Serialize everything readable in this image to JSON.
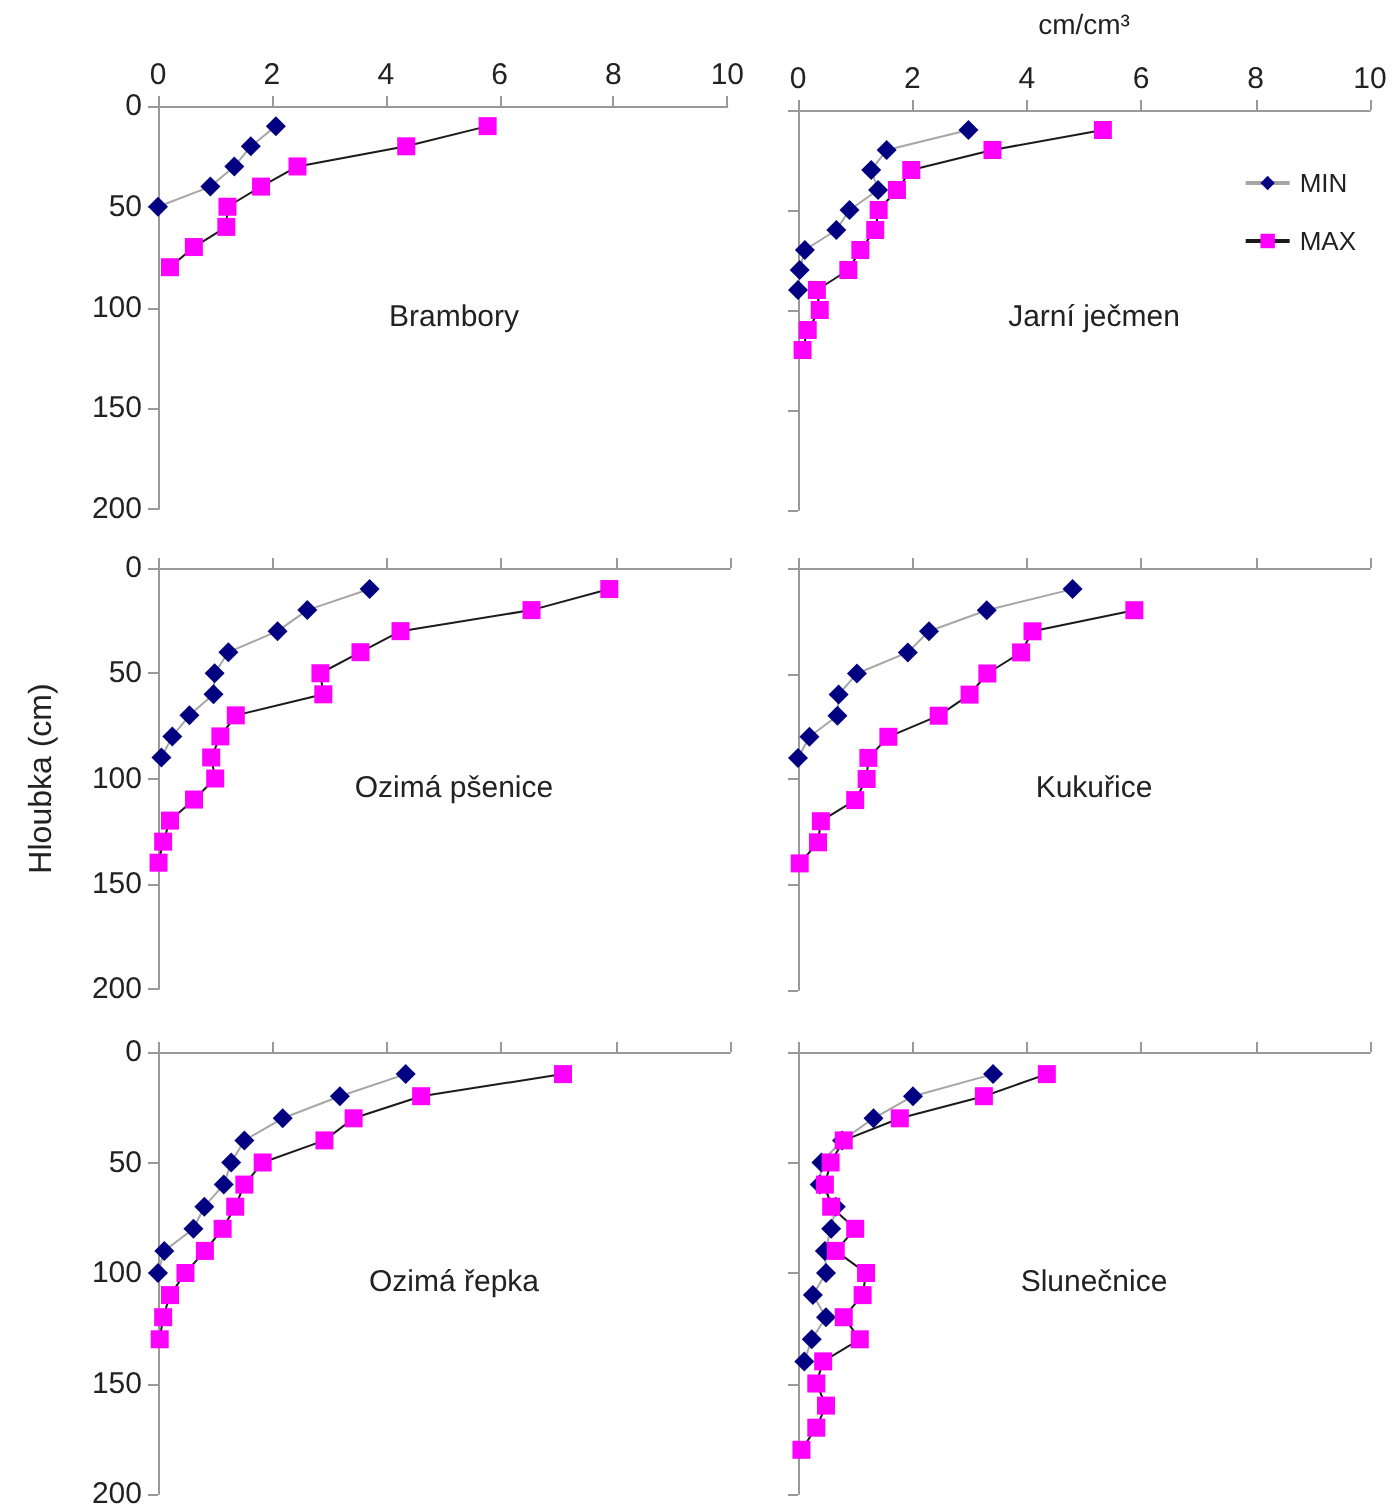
{
  "chart_data": [
    {
      "type": "line",
      "title": "Brambory",
      "xlim": [
        0,
        10
      ],
      "xticks": [
        0,
        2,
        4,
        6,
        8,
        10
      ],
      "ylim": [
        200,
        0
      ],
      "yticks": [
        0,
        50,
        100,
        150,
        200
      ],
      "grid": false,
      "legend": false,
      "series": [
        {
          "color": "#000080",
          "marker": "diamond",
          "x": [
            2.07,
            1.63,
            1.34,
            0.92,
            0
          ],
          "values": [
            10,
            20,
            30,
            40,
            50
          ]
        },
        {
          "color": "#ff00ff",
          "marker": "square",
          "x": [
            5.79,
            4.36,
            2.45,
            1.81,
            1.22,
            1.2,
            0.63,
            0.21
          ],
          "values": [
            10,
            20,
            30,
            40,
            50,
            60,
            70,
            80
          ]
        }
      ]
    },
    {
      "type": "line",
      "title": "Jarní ječmen",
      "xlabel": "cm/cm³",
      "xlim": [
        0,
        10
      ],
      "xticks": [
        0,
        2,
        4,
        6,
        8,
        10
      ],
      "ylim": [
        200,
        0
      ],
      "yticks": [
        0,
        50,
        100,
        150,
        200
      ],
      "tick_labels": "x",
      "grid": false,
      "legend": "right",
      "series": [
        {
          "name": "MIN",
          "color": "#000080",
          "marker": "diamond",
          "x": [
            2.98,
            1.55,
            1.28,
            1.4,
            0.9,
            0.67,
            0.12,
            0.03,
            0
          ],
          "values": [
            10,
            20,
            30,
            40,
            50,
            60,
            70,
            80,
            90
          ]
        },
        {
          "name": "MAX",
          "color": "#ff00ff",
          "marker": "square",
          "x": [
            5.33,
            3.4,
            1.98,
            1.73,
            1.41,
            1.35,
            1.09,
            0.88,
            0.33,
            0.38,
            0.17,
            0.08
          ],
          "values": [
            10,
            20,
            30,
            40,
            50,
            60,
            70,
            80,
            90,
            100,
            110,
            120
          ]
        }
      ]
    },
    {
      "type": "line",
      "title": "Ozimá pšenice",
      "ylabel": "Hloubka (cm)",
      "xlim": [
        0,
        10
      ],
      "xticks": [
        0,
        2,
        4,
        6,
        8,
        10
      ],
      "ylim": [
        200,
        0
      ],
      "yticks": [
        0,
        50,
        100,
        150,
        200
      ],
      "tick_labels": "y",
      "grid": false,
      "legend": false,
      "series": [
        {
          "color": "#000080",
          "marker": "diamond",
          "x": [
            3.7,
            2.61,
            2.09,
            1.23,
            0.99,
            0.97,
            0.55,
            0.25,
            0.06
          ],
          "values": [
            10,
            20,
            30,
            40,
            50,
            60,
            70,
            80,
            90
          ]
        },
        {
          "color": "#ff00ff",
          "marker": "square",
          "x": [
            7.89,
            6.53,
            4.24,
            3.54,
            2.84,
            2.89,
            1.36,
            1.09,
            0.93,
            1.0,
            0.63,
            0.21,
            0.09,
            0.01
          ],
          "values": [
            10,
            20,
            30,
            40,
            50,
            60,
            70,
            80,
            90,
            100,
            110,
            120,
            130,
            140
          ]
        }
      ]
    },
    {
      "type": "line",
      "title": "Kukuřice",
      "xlim": [
        0,
        10
      ],
      "xticks": [
        0,
        2,
        4,
        6,
        8,
        10
      ],
      "ylim": [
        200,
        0
      ],
      "yticks": [
        0,
        50,
        100,
        150,
        200
      ],
      "tick_labels": false,
      "grid": false,
      "legend": false,
      "series": [
        {
          "color": "#000080",
          "marker": "diamond",
          "x": [
            4.8,
            3.3,
            2.29,
            1.92,
            1.03,
            0.71,
            0.69,
            0.2,
            0
          ],
          "values": [
            10,
            20,
            30,
            40,
            50,
            60,
            70,
            80,
            90
          ]
        },
        {
          "color": "#ff00ff",
          "marker": "square",
          "x": [
            5.88,
            4.1,
            3.9,
            3.31,
            3.0,
            2.46,
            1.58,
            1.23,
            1.2,
            1.0,
            0.4,
            0.35,
            0.03
          ],
          "values": [
            20,
            30,
            40,
            50,
            60,
            70,
            80,
            90,
            100,
            110,
            120,
            130,
            140
          ]
        }
      ]
    },
    {
      "type": "line",
      "title": "Ozimá řepka",
      "xlim": [
        0,
        10
      ],
      "xticks": [
        0,
        2,
        4,
        6,
        8,
        10
      ],
      "ylim": [
        200,
        0
      ],
      "yticks": [
        0,
        50,
        100,
        150,
        200
      ],
      "tick_labels": "y",
      "grid": false,
      "legend": false,
      "series": [
        {
          "color": "#000080",
          "marker": "diamond",
          "x": [
            4.33,
            3.18,
            2.18,
            1.51,
            1.28,
            1.15,
            0.81,
            0.62,
            0.11,
            0
          ],
          "values": [
            10,
            20,
            30,
            40,
            50,
            60,
            70,
            80,
            90,
            100
          ]
        },
        {
          "color": "#ff00ff",
          "marker": "square",
          "x": [
            7.08,
            4.6,
            3.42,
            2.91,
            1.83,
            1.51,
            1.35,
            1.13,
            0.82,
            0.48,
            0.21,
            0.09,
            0.03
          ],
          "values": [
            10,
            20,
            30,
            40,
            50,
            60,
            70,
            80,
            90,
            100,
            110,
            120,
            130
          ]
        }
      ]
    },
    {
      "type": "line",
      "title": "Slunečnice",
      "xlim": [
        0,
        10
      ],
      "xticks": [
        0,
        2,
        4,
        6,
        8,
        10
      ],
      "ylim": [
        200,
        0
      ],
      "yticks": [
        0,
        50,
        100,
        150,
        200
      ],
      "tick_labels": false,
      "grid": false,
      "legend": false,
      "series": [
        {
          "color": "#000080",
          "marker": "diamond",
          "x": [
            3.41,
            2.01,
            1.32,
            0.77,
            0.41,
            0.38,
            0.66,
            0.58,
            0.47,
            0.49,
            0.26,
            0.49,
            0.24,
            0.11
          ],
          "values": [
            10,
            20,
            30,
            40,
            50,
            60,
            70,
            80,
            90,
            100,
            110,
            120,
            130,
            140
          ]
        },
        {
          "color": "#ff00ff",
          "marker": "square",
          "x": [
            4.35,
            3.25,
            1.78,
            0.8,
            0.57,
            0.47,
            0.58,
            1.0,
            0.66,
            1.19,
            1.13,
            0.8,
            1.08,
            0.44,
            0.32,
            0.49,
            0.32,
            0.06
          ],
          "values": [
            10,
            20,
            30,
            40,
            50,
            60,
            70,
            80,
            90,
            100,
            110,
            120,
            130,
            140,
            150,
            160,
            170,
            180
          ]
        }
      ]
    }
  ]
}
